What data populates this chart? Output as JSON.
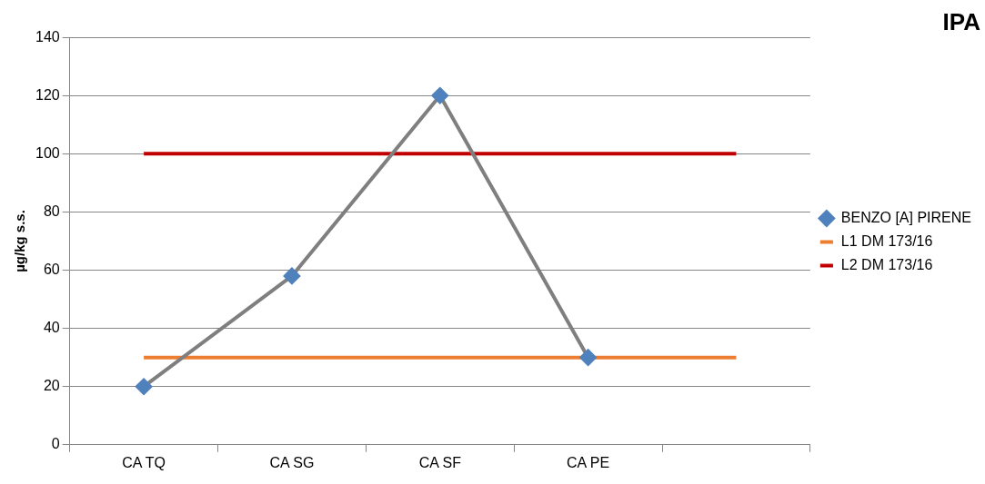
{
  "chart_data": {
    "type": "line",
    "title": "IPA",
    "ylabel": "µg/kg s.s.",
    "categories": [
      "CA TQ",
      "CA SG",
      "CA SF",
      "CA PE",
      null
    ],
    "series": [
      {
        "name": "BENZO [A] PIRENE",
        "color": "#7f7f7f",
        "values": [
          20,
          58,
          120,
          30,
          null
        ],
        "marker": "diamond"
      },
      {
        "name": "L1 DM 173/16",
        "color": "#ed7d31",
        "values": [
          30,
          30,
          30,
          30,
          30
        ],
        "marker": "none"
      },
      {
        "name": "L2 DM 173/16",
        "color": "#c00000",
        "values": [
          100,
          100,
          100,
          100,
          100
        ],
        "marker": "none"
      }
    ],
    "ylim": [
      0,
      140
    ],
    "yticks": [
      0,
      20,
      40,
      60,
      80,
      100,
      120,
      140
    ],
    "grid": "y",
    "legend": "right",
    "line_style": "solid"
  }
}
